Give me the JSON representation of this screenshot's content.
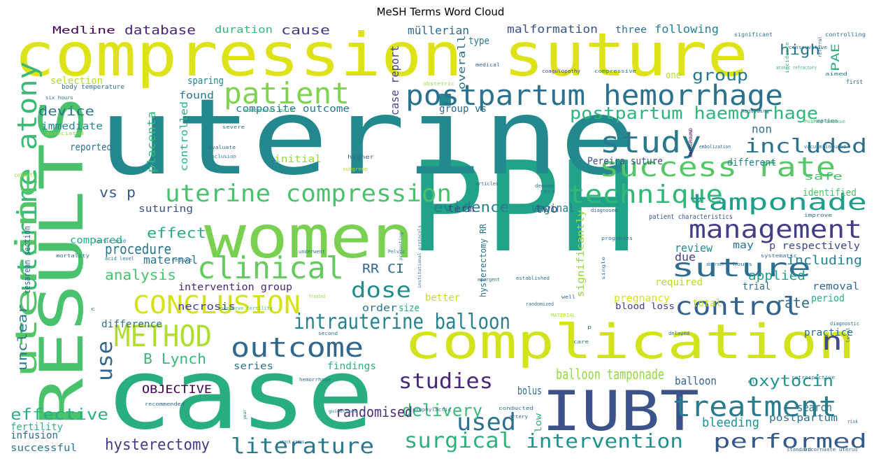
{
  "chart_data": {
    "type": "wordcloud",
    "title": "MeSH Terms Word Cloud",
    "colormap": "viridis",
    "background": "#ffffff",
    "words": [
      {
        "text": "PPH",
        "weight": 1.0,
        "color": "#20a386"
      },
      {
        "text": "uterine",
        "weight": 0.95,
        "color": "#23898e"
      },
      {
        "text": "case",
        "weight": 0.9,
        "color": "#29af7f"
      },
      {
        "text": "compression suture",
        "weight": 0.82,
        "color": "#dde318"
      },
      {
        "text": "RESULTS",
        "weight": 0.7,
        "color": "#4ac16d"
      },
      {
        "text": "women",
        "weight": 0.68,
        "color": "#7ad151"
      },
      {
        "text": "IUBT",
        "weight": 0.66,
        "color": "#3b528b"
      },
      {
        "text": "complication",
        "weight": 0.62,
        "color": "#d2e21b"
      },
      {
        "text": "postpartum hemorrhage",
        "weight": 0.5,
        "color": "#2c728e"
      },
      {
        "text": "uterine atony",
        "weight": 0.45,
        "color": "#3aba76"
      },
      {
        "text": "uterine",
        "weight": 0.44,
        "color": "#52c569"
      },
      {
        "text": "patient",
        "weight": 0.4,
        "color": "#7fd34e"
      },
      {
        "text": "success rate",
        "weight": 0.4,
        "color": "#56c667"
      },
      {
        "text": "study",
        "weight": 0.38,
        "color": "#2a788e"
      },
      {
        "text": "treatment",
        "weight": 0.38,
        "color": "#287c8e"
      },
      {
        "text": "clinical",
        "weight": 0.36,
        "color": "#65cb5e"
      },
      {
        "text": "CONCLUSION",
        "weight": 0.34,
        "color": "#d5e21a"
      },
      {
        "text": "METHOD",
        "weight": 0.34,
        "color": "#b0dd2f"
      },
      {
        "text": "outcome",
        "weight": 0.34,
        "color": "#31688e"
      },
      {
        "text": "suture",
        "weight": 0.32,
        "color": "#2f6c8e"
      },
      {
        "text": "control",
        "weight": 0.32,
        "color": "#33638d"
      },
      {
        "text": "management",
        "weight": 0.3,
        "color": "#433e85"
      },
      {
        "text": "technique",
        "weight": 0.3,
        "color": "#35b779"
      },
      {
        "text": "tamponade",
        "weight": 0.28,
        "color": "#1f9e89"
      },
      {
        "text": "uterine compression",
        "weight": 0.28,
        "color": "#4ac16d"
      },
      {
        "text": "intrauterine balloon",
        "weight": 0.25,
        "color": "#26828e"
      },
      {
        "text": "used",
        "weight": 0.28,
        "color": "#2d708e"
      },
      {
        "text": "literature",
        "weight": 0.25,
        "color": "#2a788e"
      },
      {
        "text": "performed",
        "weight": 0.24,
        "color": "#38598c"
      },
      {
        "text": "intervention",
        "weight": 0.22,
        "color": "#21918c"
      },
      {
        "text": "surgical",
        "weight": 0.22,
        "color": "#2db27d"
      },
      {
        "text": "studies",
        "weight": 0.23,
        "color": "#482878"
      },
      {
        "text": "n",
        "weight": 0.28,
        "color": "#3e4989"
      },
      {
        "text": "dose",
        "weight": 0.24,
        "color": "#228c8d"
      },
      {
        "text": "included",
        "weight": 0.22,
        "color": "#2d708e"
      },
      {
        "text": "postpartum haemorrhage",
        "weight": 0.2,
        "color": "#2fb47c"
      },
      {
        "text": "use",
        "weight": 0.22,
        "color": "#31688e"
      },
      {
        "text": "delivery",
        "weight": 0.19,
        "color": "#3aba76"
      },
      {
        "text": "hysterectomy",
        "weight": 0.17,
        "color": "#443983"
      },
      {
        "text": "oxytocin",
        "weight": 0.17,
        "color": "#1f948c"
      },
      {
        "text": "effective",
        "weight": 0.17,
        "color": "#29af7f"
      },
      {
        "text": "randomised",
        "weight": 0.15,
        "color": "#472d7b"
      },
      {
        "text": "B Lynch",
        "weight": 0.15,
        "color": "#38b977"
      },
      {
        "text": "balloon tamponade",
        "weight": 0.14,
        "color": "#95d840"
      },
      {
        "text": "OBJECTIVE",
        "weight": 0.13,
        "color": "#440154"
      },
      {
        "text": "evidence",
        "weight": 0.15,
        "color": "#27808e"
      },
      {
        "text": "rate",
        "weight": 0.17,
        "color": "#31688e"
      },
      {
        "text": "bleeding",
        "weight": 0.15,
        "color": "#21918c"
      },
      {
        "text": "device",
        "weight": 0.14,
        "color": "#2c728e"
      },
      {
        "text": "analysis",
        "weight": 0.14,
        "color": "#4ac16d"
      },
      {
        "text": "procedure",
        "weight": 0.14,
        "color": "#2c728e"
      },
      {
        "text": "effect",
        "weight": 0.14,
        "color": "#29af7f"
      },
      {
        "text": "group",
        "weight": 0.15,
        "color": "#2a788e"
      },
      {
        "text": "database",
        "weight": 0.13,
        "color": "#482475"
      },
      {
        "text": "cause",
        "weight": 0.13,
        "color": "#443983"
      },
      {
        "text": "high",
        "weight": 0.14,
        "color": "#2c728e"
      },
      {
        "text": "Medline",
        "weight": 0.11,
        "color": "#440154"
      },
      {
        "text": "duration",
        "weight": 0.11,
        "color": "#35b779"
      },
      {
        "text": "müllerian",
        "weight": 0.11,
        "color": "#31688e"
      },
      {
        "text": "malformation",
        "weight": 0.11,
        "color": "#3b528b"
      },
      {
        "text": "three",
        "weight": 0.1,
        "color": "#2d708e"
      },
      {
        "text": "following",
        "weight": 0.11,
        "color": "#26828e"
      },
      {
        "text": "unclear",
        "weight": 0.12,
        "color": "#2a788e"
      },
      {
        "text": "applied",
        "weight": 0.13,
        "color": "#1f9e89"
      },
      {
        "text": "including",
        "weight": 0.13,
        "color": "#27808e"
      },
      {
        "text": "maternal",
        "weight": 0.12,
        "color": "#2c728e"
      },
      {
        "text": "review",
        "weight": 0.12,
        "color": "#23898e"
      },
      {
        "text": "RR CI",
        "weight": 0.12,
        "color": "#31688e"
      },
      {
        "text": "vs p",
        "weight": 0.12,
        "color": "#38598c"
      },
      {
        "text": "two",
        "weight": 0.11,
        "color": "#3b528b"
      },
      {
        "text": "vaginal",
        "weight": 0.11,
        "color": "#2a788e"
      },
      {
        "text": "due",
        "weight": 0.11,
        "color": "#414487"
      },
      {
        "text": "term",
        "weight": 0.1,
        "color": "#3e4989"
      },
      {
        "text": "PAE",
        "weight": 0.1,
        "color": "#2db27d"
      },
      {
        "text": "Pereira suture",
        "weight": 0.1,
        "color": "#3b528b"
      },
      {
        "text": "identified",
        "weight": 0.1,
        "color": "#4ac16d"
      },
      {
        "text": "safe",
        "weight": 0.1,
        "color": "#4ac16d"
      },
      {
        "text": "different",
        "weight": 0.1,
        "color": "#26828e"
      },
      {
        "text": "non",
        "weight": 0.1,
        "color": "#2c728e"
      },
      {
        "text": "case report",
        "weight": 0.11,
        "color": "#404688"
      },
      {
        "text": "group vs",
        "weight": 0.1,
        "color": "#31688e"
      },
      {
        "text": "composite outcome",
        "weight": 0.1,
        "color": "#2a788e"
      },
      {
        "text": "sparing",
        "weight": 0.1,
        "color": "#26828e"
      },
      {
        "text": "found",
        "weight": 0.1,
        "color": "#2a788e"
      },
      {
        "text": "selection",
        "weight": 0.09,
        "color": "#b0dd2f"
      },
      {
        "text": "immediate",
        "weight": 0.1,
        "color": "#23898e"
      },
      {
        "text": "reported",
        "weight": 0.1,
        "color": "#2c728e"
      },
      {
        "text": "initial",
        "weight": 0.1,
        "color": "#95d840"
      },
      {
        "text": "controlled",
        "weight": 0.09,
        "color": "#2db27d"
      },
      {
        "text": "placenta",
        "weight": 0.1,
        "color": "#35b779"
      },
      {
        "text": "suturing",
        "weight": 0.09,
        "color": "#3b528b"
      },
      {
        "text": "compared",
        "weight": 0.09,
        "color": "#29af7f"
      },
      {
        "text": "intervention group",
        "weight": 0.09,
        "color": "#482878"
      },
      {
        "text": "order",
        "weight": 0.1,
        "color": "#2c728e"
      },
      {
        "text": "better",
        "weight": 0.1,
        "color": "#bddf26"
      },
      {
        "text": "size",
        "weight": 0.1,
        "color": "#29af7f"
      },
      {
        "text": "necrosis",
        "weight": 0.1,
        "color": "#433e85"
      },
      {
        "text": "difference",
        "weight": 0.09,
        "color": "#2d708e"
      },
      {
        "text": "series",
        "weight": 0.09,
        "color": "#2c728e"
      },
      {
        "text": "findings",
        "weight": 0.09,
        "color": "#2db27d"
      },
      {
        "text": "bolus",
        "weight": 0.11,
        "color": "#31688e"
      },
      {
        "text": "balloon",
        "weight": 0.11,
        "color": "#33638d"
      },
      {
        "text": "search",
        "weight": 0.1,
        "color": "#2c728e"
      },
      {
        "text": "postpartum",
        "weight": 0.09,
        "color": "#2c728e"
      },
      {
        "text": "pregnancy",
        "weight": 0.1,
        "color": "#d5e21a"
      },
      {
        "text": "total",
        "weight": 0.1,
        "color": "#bddf26"
      },
      {
        "text": "practice",
        "weight": 0.1,
        "color": "#2c728e"
      },
      {
        "text": "period",
        "weight": 0.09,
        "color": "#29af7f"
      },
      {
        "text": "removal",
        "weight": 0.09,
        "color": "#31688e"
      },
      {
        "text": "trial",
        "weight": 0.09,
        "color": "#31688e"
      },
      {
        "text": "required",
        "weight": 0.09,
        "color": "#b0dd2f"
      },
      {
        "text": "may",
        "weight": 0.09,
        "color": "#2c728e"
      },
      {
        "text": "p respectively",
        "weight": 0.09,
        "color": "#3e4989"
      },
      {
        "text": "significantly",
        "weight": 0.09,
        "color": "#95d840"
      },
      {
        "text": "hysterectomy RR",
        "weight": 0.08,
        "color": "#2c728e"
      },
      {
        "text": "fertility",
        "weight": 0.09,
        "color": "#2db27d"
      },
      {
        "text": "infusion",
        "weight": 0.09,
        "color": "#31688e"
      },
      {
        "text": "successful",
        "weight": 0.09,
        "color": "#2a788e"
      },
      {
        "text": "cesarean section",
        "weight": 0.08,
        "color": "#31688e"
      },
      {
        "text": "overall",
        "weight": 0.09,
        "color": "#2c728e"
      },
      {
        "text": "type",
        "weight": 0.09,
        "color": "#2a788e"
      },
      {
        "text": "one",
        "weight": 0.09,
        "color": "#b0dd2f"
      },
      {
        "text": "low",
        "weight": 0.08,
        "color": "#2db27d"
      },
      {
        "text": "blood loss",
        "weight": 0.08,
        "color": "#443983"
      },
      {
        "text": "patient characteristics",
        "weight": 0.07,
        "color": "#3b528b"
      },
      {
        "text": "significant",
        "weight": 0.06,
        "color": "#2c728e"
      },
      {
        "text": "controlling",
        "weight": 0.06,
        "color": "#2d708e"
      },
      {
        "text": "conservative",
        "weight": 0.05,
        "color": "#2c728e"
      },
      {
        "text": "referral",
        "weight": 0.05,
        "color": "#31688e"
      },
      {
        "text": "medical",
        "weight": 0.05,
        "color": "#38598c"
      },
      {
        "text": "coagulopathy",
        "weight": 0.05,
        "color": "#414487"
      },
      {
        "text": "compressive",
        "weight": 0.05,
        "color": "#2c728e"
      },
      {
        "text": "incidence",
        "weight": 0.05,
        "color": "#2db27d"
      },
      {
        "text": "atonic refractory",
        "weight": 0.05,
        "color": "#35b779"
      },
      {
        "text": "aimed",
        "weight": 0.05,
        "color": "#2a788e"
      },
      {
        "text": "first",
        "weight": 0.06,
        "color": "#31688e"
      },
      {
        "text": "obstetric",
        "weight": 0.05,
        "color": "#95d840"
      },
      {
        "text": "body temperature",
        "weight": 0.06,
        "color": "#2c728e"
      },
      {
        "text": "six hours",
        "weight": 0.05,
        "color": "#31688e"
      },
      {
        "text": "associated",
        "weight": 0.05,
        "color": "#95d840"
      },
      {
        "text": "abdominal pain",
        "weight": 0.05,
        "color": "#2db27d"
      },
      {
        "text": "severe",
        "weight": 0.05,
        "color": "#2c728e"
      },
      {
        "text": "evaluate",
        "weight": 0.05,
        "color": "#31688e"
      },
      {
        "text": "inclusion",
        "weight": 0.05,
        "color": "#2a788e"
      },
      {
        "text": "higher",
        "weight": 0.06,
        "color": "#31688e"
      },
      {
        "text": "subgroup",
        "weight": 0.04,
        "color": "#b0dd2f"
      },
      {
        "text": "cohort",
        "weight": 0.05,
        "color": "#95d840"
      },
      {
        "text": "BACKGROUND",
        "weight": 0.04,
        "color": "#440154"
      },
      {
        "text": "Regarding",
        "weight": 0.05,
        "color": "#31688e"
      },
      {
        "text": "PubMed Embase",
        "weight": 0.05,
        "color": "#4ac16d"
      },
      {
        "text": "option",
        "weight": 0.05,
        "color": "#2c728e"
      },
      {
        "text": "embolization",
        "weight": 0.05,
        "color": "#31688e"
      },
      {
        "text": "vacuum induced",
        "weight": 0.05,
        "color": "#2c728e"
      },
      {
        "text": "articles",
        "weight": 0.05,
        "color": "#31688e"
      },
      {
        "text": "deemed",
        "weight": 0.05,
        "color": "#2c728e"
      },
      {
        "text": "rare",
        "weight": 0.04,
        "color": "#2a788e"
      },
      {
        "text": "diagnosed",
        "weight": 0.04,
        "color": "#38598c"
      },
      {
        "text": "improve",
        "weight": 0.05,
        "color": "#31688e"
      },
      {
        "text": "lactic acid",
        "weight": 0.05,
        "color": "#2c728e"
      },
      {
        "text": "acid level",
        "weight": 0.05,
        "color": "#2c728e"
      },
      {
        "text": "mortality",
        "weight": 0.05,
        "color": "#31688e"
      },
      {
        "text": "reduce",
        "weight": 0.05,
        "color": "#31688e"
      },
      {
        "text": "underwent",
        "weight": 0.04,
        "color": "#2c728e"
      },
      {
        "text": "Pelvic",
        "weight": 0.05,
        "color": "#2a788e"
      },
      {
        "text": "presenting",
        "weight": 0.04,
        "color": "#2c728e"
      },
      {
        "text": "institutional protocols",
        "weight": 0.04,
        "color": "#31688e"
      },
      {
        "text": "prognoses",
        "weight": 0.04,
        "color": "#2c728e"
      },
      {
        "text": "abstract",
        "weight": 0.05,
        "color": "#31688e"
      },
      {
        "text": "hours",
        "weight": 0.05,
        "color": "#2c728e"
      },
      {
        "text": "systematic",
        "weight": 0.05,
        "color": "#31688e"
      },
      {
        "text": "established",
        "weight": 0.05,
        "color": "#2c728e"
      },
      {
        "text": "emergent",
        "weight": 0.05,
        "color": "#2c728e"
      },
      {
        "text": "single",
        "weight": 0.04,
        "color": "#31688e"
      },
      {
        "text": "well",
        "weight": 0.05,
        "color": "#31688e"
      },
      {
        "text": "randomized",
        "weight": 0.05,
        "color": "#2c728e"
      },
      {
        "text": "MATERIAL",
        "weight": 0.04,
        "color": "#b0dd2f"
      },
      {
        "text": "treated",
        "weight": 0.04,
        "color": "#95d840"
      },
      {
        "text": "preserve fertility",
        "weight": 0.05,
        "color": "#4ac16d"
      },
      {
        "text": "second",
        "weight": 0.04,
        "color": "#2c728e"
      },
      {
        "text": "delayed",
        "weight": 0.05,
        "color": "#31688e"
      },
      {
        "text": "care",
        "weight": 0.05,
        "color": "#2c728e"
      },
      {
        "text": "diagnostic",
        "weight": 0.05,
        "color": "#31688e"
      },
      {
        "text": "hemorrhage",
        "weight": 0.05,
        "color": "#2c728e"
      },
      {
        "text": "prophylactic",
        "weight": 0.05,
        "color": "#31688e"
      },
      {
        "text": "shock index",
        "weight": 0.05,
        "color": "#31688e"
      },
      {
        "text": "conducted",
        "weight": 0.05,
        "color": "#2c728e"
      },
      {
        "text": "artery",
        "weight": 0.05,
        "color": "#31688e"
      },
      {
        "text": "retrospective",
        "weight": 0.05,
        "color": "#2c728e"
      },
      {
        "text": "ml",
        "weight": 0.04,
        "color": "#2c728e"
      },
      {
        "text": "recommended",
        "weight": 0.05,
        "color": "#31688e"
      },
      {
        "text": "guidelines",
        "weight": 0.04,
        "color": "#2c728e"
      },
      {
        "text": "year",
        "weight": 0.04,
        "color": "#2c728e"
      },
      {
        "text": "standard",
        "weight": 0.04,
        "color": "#31688e"
      },
      {
        "text": "bicornuate uterus",
        "weight": 0.05,
        "color": "#31688e"
      },
      {
        "text": "risk",
        "weight": 0.04,
        "color": "#2c728e"
      },
      {
        "text": "level",
        "weight": 0.04,
        "color": "#31688e"
      },
      {
        "text": "p",
        "weight": 0.04,
        "color": "#31688e"
      },
      {
        "text": "c",
        "weight": 0.04,
        "color": "#2c728e"
      }
    ]
  }
}
